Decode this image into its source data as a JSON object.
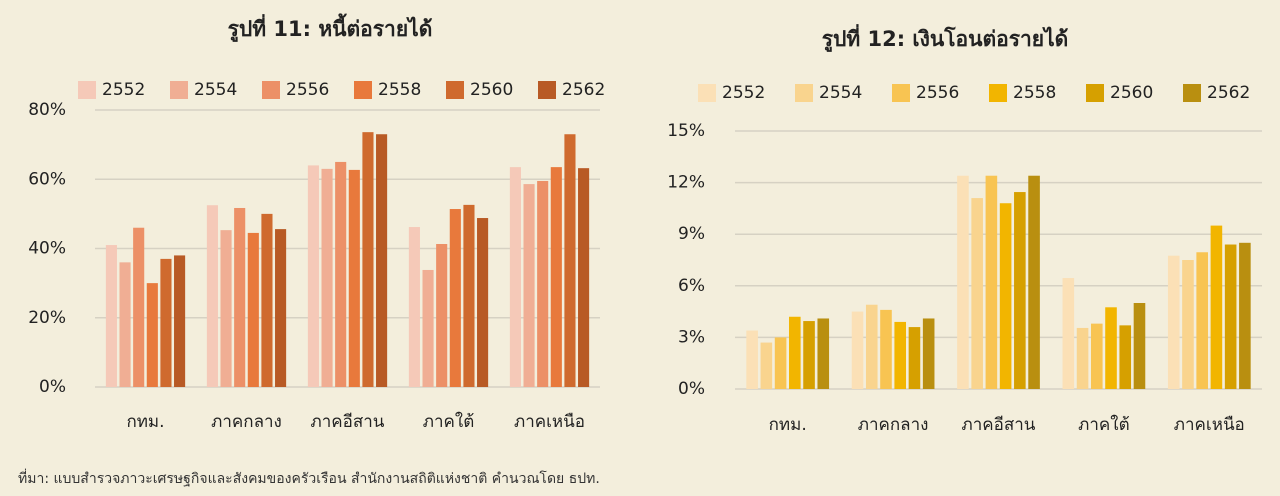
{
  "chart_data": [
    {
      "type": "bar",
      "title": "รูปที่ 11: หนี้ต่อรายได้",
      "categories": [
        "กทม.",
        "ภาคกลาง",
        "ภาคอีสาน",
        "ภาคใต้",
        "ภาคเหนือ"
      ],
      "series": [
        {
          "name": "2552",
          "color": "#f5c9b8",
          "values": [
            41,
            52.5,
            64,
            46.2,
            63.5
          ]
        },
        {
          "name": "2554",
          "color": "#f0ae94",
          "values": [
            36,
            45.3,
            63,
            33.8,
            58.6
          ]
        },
        {
          "name": "2556",
          "color": "#ec9067",
          "values": [
            46,
            51.7,
            65,
            41.3,
            59.5
          ]
        },
        {
          "name": "2558",
          "color": "#e8793c",
          "values": [
            30,
            44.5,
            62.7,
            51.4,
            63.5
          ]
        },
        {
          "name": "2560",
          "color": "#cf6a2e",
          "values": [
            37,
            50,
            73.6,
            52.6,
            73
          ]
        },
        {
          "name": "2562",
          "color": "#b85a25",
          "values": [
            38,
            45.6,
            73,
            48.8,
            63.2
          ]
        }
      ],
      "ylim": [
        0,
        80
      ],
      "yticks": [
        {
          "value": 0,
          "label": "0%"
        },
        {
          "value": 20,
          "label": "20%"
        },
        {
          "value": 40,
          "label": "40%"
        },
        {
          "value": 60,
          "label": "60%"
        },
        {
          "value": 80,
          "label": "80%"
        }
      ],
      "grid": true
    },
    {
      "type": "bar",
      "title": "รูปที่ 12: เงินโอนต่อรายได้",
      "categories": [
        "กทม.",
        "ภาคกลาง",
        "ภาคอีสาน",
        "ภาคใต้",
        "ภาคเหนือ"
      ],
      "series": [
        {
          "name": "2552",
          "color": "#fbe0b6",
          "values": [
            3.4,
            4.5,
            12.4,
            6.45,
            7.75
          ]
        },
        {
          "name": "2554",
          "color": "#f9d48e",
          "values": [
            2.7,
            4.9,
            11.1,
            3.55,
            7.5
          ]
        },
        {
          "name": "2556",
          "color": "#f8c452",
          "values": [
            3.0,
            4.6,
            12.4,
            3.8,
            7.95
          ]
        },
        {
          "name": "2558",
          "color": "#f2b500",
          "values": [
            4.2,
            3.9,
            10.8,
            4.75,
            9.5
          ]
        },
        {
          "name": "2560",
          "color": "#d6a000",
          "values": [
            3.95,
            3.6,
            11.45,
            3.7,
            8.4
          ]
        },
        {
          "name": "2562",
          "color": "#b98f10",
          "values": [
            4.1,
            4.1,
            12.4,
            5.0,
            8.5
          ]
        }
      ],
      "ylim": [
        0,
        15
      ],
      "yticks": [
        {
          "value": 0,
          "label": "0%"
        },
        {
          "value": 3,
          "label": "3%"
        },
        {
          "value": 6,
          "label": "6%"
        },
        {
          "value": 9,
          "label": "9%"
        },
        {
          "value": 12,
          "label": "12%"
        },
        {
          "value": 15,
          "label": "15%"
        }
      ],
      "grid": true
    }
  ],
  "source": "ที่มา: แบบสำรวจภาวะเศรษฐกิจและสังคมของครัวเรือน  สำนักงานสถิติแห่งชาติ คำนวณโดย ธปท."
}
